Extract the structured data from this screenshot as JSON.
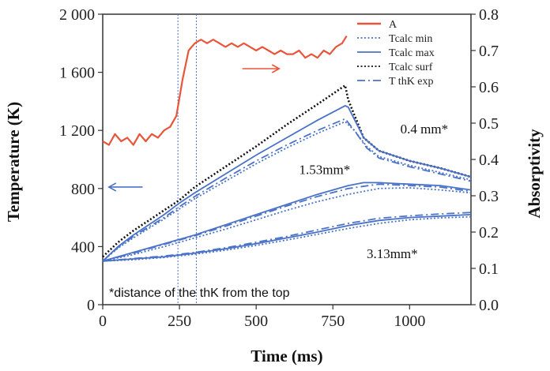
{
  "chart_data": {
    "type": "line",
    "xlabel": "Time (ms)",
    "ylabel_left": "Temperature (K)",
    "ylabel_right": "Absorptivity",
    "xlim": [
      0,
      1200
    ],
    "ylim_left": [
      0,
      2000
    ],
    "ylim_right": [
      0,
      0.8
    ],
    "x_ticks": [
      0,
      250,
      500,
      750,
      1000
    ],
    "x_tick_labels": [
      "0",
      "250",
      "500",
      "750",
      "1000"
    ],
    "y_left_ticks": [
      0,
      400,
      800,
      1200,
      1600,
      2000
    ],
    "y_left_tick_labels": [
      "0",
      "400",
      "800",
      "1 200",
      "1 600",
      "2 000"
    ],
    "y_right_ticks": [
      0,
      0.1,
      0.2,
      0.3,
      0.4,
      0.5,
      0.6,
      0.7,
      0.8
    ],
    "y_right_tick_labels": [
      "0.0",
      "0.1",
      "0.2",
      "0.3",
      "0.4",
      "0.5",
      "0.6",
      "0.7",
      "0.8"
    ],
    "vertical_markers": [
      245,
      305
    ],
    "legend": {
      "position": "top-right",
      "entries": [
        {
          "label": "A",
          "color": "#e8553a",
          "style": "solid"
        },
        {
          "label": "Tcalc min",
          "color": "#4a72c8",
          "style": "dotted"
        },
        {
          "label": "Tcalc max",
          "color": "#4a72c8",
          "style": "solid"
        },
        {
          "label": "Tcalc surf",
          "color": "#111111",
          "style": "dotted"
        },
        {
          "label": "T thK exp",
          "color": "#4a72c8",
          "style": "dashdot"
        }
      ]
    },
    "absorptivity": {
      "label": "A",
      "axis": "right",
      "color": "#e8553a",
      "points": [
        [
          0,
          0.45
        ],
        [
          20,
          0.44
        ],
        [
          40,
          0.47
        ],
        [
          60,
          0.45
        ],
        [
          80,
          0.46
        ],
        [
          100,
          0.44
        ],
        [
          120,
          0.47
        ],
        [
          140,
          0.45
        ],
        [
          160,
          0.47
        ],
        [
          180,
          0.46
        ],
        [
          200,
          0.48
        ],
        [
          220,
          0.49
        ],
        [
          240,
          0.52
        ],
        [
          260,
          0.62
        ],
        [
          280,
          0.7
        ],
        [
          300,
          0.72
        ],
        [
          320,
          0.73
        ],
        [
          340,
          0.72
        ],
        [
          360,
          0.73
        ],
        [
          380,
          0.72
        ],
        [
          400,
          0.71
        ],
        [
          420,
          0.72
        ],
        [
          440,
          0.71
        ],
        [
          460,
          0.72
        ],
        [
          480,
          0.71
        ],
        [
          500,
          0.7
        ],
        [
          520,
          0.71
        ],
        [
          540,
          0.7
        ],
        [
          560,
          0.69
        ],
        [
          580,
          0.7
        ],
        [
          600,
          0.69
        ],
        [
          620,
          0.69
        ],
        [
          640,
          0.7
        ],
        [
          660,
          0.68
        ],
        [
          680,
          0.69
        ],
        [
          700,
          0.68
        ],
        [
          720,
          0.7
        ],
        [
          740,
          0.69
        ],
        [
          760,
          0.71
        ],
        [
          780,
          0.72
        ],
        [
          795,
          0.74
        ]
      ]
    },
    "temperature_series": [
      {
        "label": "Tcalc surf",
        "axis": "left",
        "color": "#111111",
        "style": "dotted",
        "points": [
          [
            0,
            330
          ],
          [
            50,
            430
          ],
          [
            100,
            510
          ],
          [
            150,
            580
          ],
          [
            200,
            650
          ],
          [
            250,
            720
          ],
          [
            300,
            810
          ],
          [
            400,
            950
          ],
          [
            500,
            1090
          ],
          [
            600,
            1240
          ],
          [
            700,
            1380
          ],
          [
            790,
            1510
          ],
          [
            800,
            1410
          ],
          [
            850,
            1150
          ],
          [
            900,
            1060
          ],
          [
            1000,
            990
          ],
          [
            1100,
            940
          ],
          [
            1200,
            880
          ]
        ]
      },
      {
        "label": "Tcalc max",
        "axis": "left",
        "color": "#4a72c8",
        "style": "solid",
        "tag": "0.4 mm*",
        "points": [
          [
            0,
            300
          ],
          [
            50,
            400
          ],
          [
            100,
            480
          ],
          [
            200,
            620
          ],
          [
            250,
            700
          ],
          [
            300,
            770
          ],
          [
            400,
            900
          ],
          [
            500,
            1030
          ],
          [
            600,
            1150
          ],
          [
            700,
            1270
          ],
          [
            790,
            1370
          ],
          [
            800,
            1360
          ],
          [
            850,
            1150
          ],
          [
            900,
            1060
          ],
          [
            1000,
            990
          ],
          [
            1100,
            940
          ],
          [
            1200,
            880
          ]
        ]
      },
      {
        "label": "T thK exp",
        "axis": "left",
        "color": "#4a72c8",
        "style": "dashdot",
        "tag": "0.4 mm*",
        "points": [
          [
            0,
            300
          ],
          [
            50,
            395
          ],
          [
            100,
            470
          ],
          [
            200,
            600
          ],
          [
            250,
            675
          ],
          [
            300,
            745
          ],
          [
            400,
            870
          ],
          [
            500,
            990
          ],
          [
            600,
            1100
          ],
          [
            700,
            1200
          ],
          [
            790,
            1280
          ],
          [
            820,
            1200
          ],
          [
            860,
            1080
          ],
          [
            900,
            1010
          ],
          [
            1000,
            950
          ],
          [
            1100,
            900
          ],
          [
            1200,
            850
          ]
        ]
      },
      {
        "label": "Tcalc min",
        "axis": "left",
        "color": "#4a72c8",
        "style": "dotted",
        "tag": "0.4 mm*",
        "points": [
          [
            0,
            300
          ],
          [
            50,
            390
          ],
          [
            100,
            460
          ],
          [
            200,
            590
          ],
          [
            250,
            660
          ],
          [
            300,
            730
          ],
          [
            400,
            850
          ],
          [
            500,
            970
          ],
          [
            600,
            1080
          ],
          [
            700,
            1180
          ],
          [
            790,
            1260
          ],
          [
            820,
            1200
          ],
          [
            860,
            1090
          ],
          [
            900,
            1020
          ],
          [
            1000,
            960
          ],
          [
            1100,
            910
          ],
          [
            1200,
            860
          ]
        ]
      },
      {
        "label": "Tcalc max",
        "axis": "left",
        "color": "#4a72c8",
        "style": "solid",
        "tag": "1.53mm*",
        "points": [
          [
            0,
            300
          ],
          [
            100,
            360
          ],
          [
            200,
            420
          ],
          [
            300,
            480
          ],
          [
            400,
            550
          ],
          [
            500,
            620
          ],
          [
            600,
            690
          ],
          [
            700,
            760
          ],
          [
            800,
            820
          ],
          [
            850,
            840
          ],
          [
            900,
            840
          ],
          [
            1000,
            830
          ],
          [
            1100,
            820
          ],
          [
            1200,
            790
          ]
        ]
      },
      {
        "label": "T thK exp",
        "axis": "left",
        "color": "#4a72c8",
        "style": "dashdot",
        "tag": "1.53mm*",
        "points": [
          [
            0,
            300
          ],
          [
            100,
            355
          ],
          [
            200,
            415
          ],
          [
            300,
            475
          ],
          [
            400,
            540
          ],
          [
            500,
            610
          ],
          [
            600,
            680
          ],
          [
            700,
            745
          ],
          [
            800,
            800
          ],
          [
            900,
            830
          ],
          [
            1000,
            820
          ],
          [
            1100,
            810
          ],
          [
            1200,
            780
          ]
        ]
      },
      {
        "label": "Tcalc min",
        "axis": "left",
        "color": "#4a72c8",
        "style": "dotted",
        "tag": "1.53mm*",
        "points": [
          [
            0,
            300
          ],
          [
            100,
            345
          ],
          [
            200,
            400
          ],
          [
            300,
            460
          ],
          [
            400,
            520
          ],
          [
            500,
            585
          ],
          [
            600,
            650
          ],
          [
            700,
            710
          ],
          [
            800,
            760
          ],
          [
            900,
            800
          ],
          [
            1000,
            805
          ],
          [
            1100,
            790
          ],
          [
            1200,
            770
          ]
        ]
      },
      {
        "label": "Tcalc max",
        "axis": "left",
        "color": "#4a72c8",
        "style": "solid",
        "tag": "3.13mm*",
        "points": [
          [
            0,
            300
          ],
          [
            100,
            315
          ],
          [
            200,
            330
          ],
          [
            300,
            355
          ],
          [
            400,
            385
          ],
          [
            500,
            420
          ],
          [
            600,
            460
          ],
          [
            700,
            500
          ],
          [
            800,
            545
          ],
          [
            900,
            580
          ],
          [
            1000,
            600
          ],
          [
            1100,
            610
          ],
          [
            1200,
            620
          ]
        ]
      },
      {
        "label": "T thK exp",
        "axis": "left",
        "color": "#4a72c8",
        "style": "dashdot",
        "tag": "3.13mm*",
        "points": [
          [
            0,
            300
          ],
          [
            100,
            318
          ],
          [
            200,
            335
          ],
          [
            300,
            360
          ],
          [
            400,
            392
          ],
          [
            500,
            430
          ],
          [
            600,
            470
          ],
          [
            700,
            515
          ],
          [
            800,
            560
          ],
          [
            900,
            595
          ],
          [
            1000,
            612
          ],
          [
            1100,
            625
          ],
          [
            1200,
            635
          ]
        ]
      },
      {
        "label": "Tcalc min",
        "axis": "left",
        "color": "#4a72c8",
        "style": "dotted",
        "tag": "3.13mm*",
        "points": [
          [
            0,
            300
          ],
          [
            100,
            310
          ],
          [
            200,
            325
          ],
          [
            300,
            348
          ],
          [
            400,
            375
          ],
          [
            500,
            408
          ],
          [
            600,
            445
          ],
          [
            700,
            485
          ],
          [
            800,
            525
          ],
          [
            900,
            560
          ],
          [
            1000,
            585
          ],
          [
            1100,
            598
          ],
          [
            1200,
            605
          ]
        ]
      }
    ],
    "annotations": [
      {
        "text": "0.4 mm*",
        "x": 970,
        "y": 1180
      },
      {
        "text": "1.53mm*",
        "x": 640,
        "y": 900
      },
      {
        "text": "3.13mm*",
        "x": 860,
        "y": 320
      }
    ],
    "arrows": [
      {
        "axis": "right",
        "from": [
          455,
          0.65
        ],
        "to": [
          575,
          0.65
        ],
        "color": "#e8553a"
      },
      {
        "axis": "left",
        "from": [
          130,
          810
        ],
        "to": [
          20,
          810
        ],
        "color": "#4a72c8"
      }
    ],
    "footnote": "*distance of the thK from the top"
  }
}
